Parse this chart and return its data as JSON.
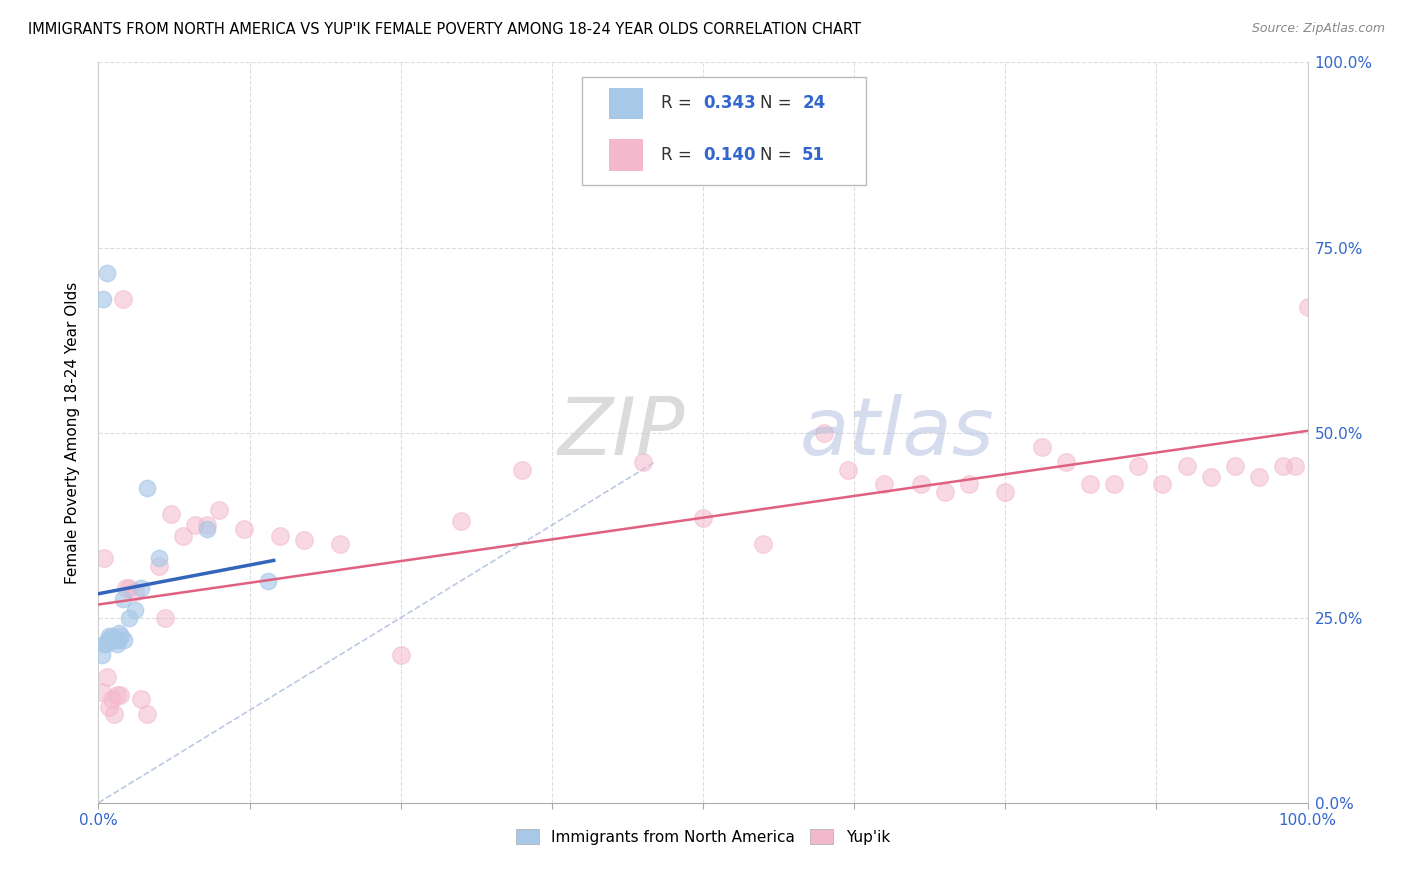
{
  "title": "IMMIGRANTS FROM NORTH AMERICA VS YUP'IK FEMALE POVERTY AMONG 18-24 YEAR OLDS CORRELATION CHART",
  "source": "Source: ZipAtlas.com",
  "ylabel": "Female Poverty Among 18-24 Year Olds",
  "background_color": "#ffffff",
  "watermark_zip": "ZIP",
  "watermark_atlas": "atlas",
  "blue_color": "#a8c8e8",
  "pink_color": "#f4b8cc",
  "blue_line_color": "#3366bb",
  "pink_line_color": "#e06080",
  "diagonal_color": "#aabbdd",
  "R_blue": 0.343,
  "N_blue": 24,
  "R_pink": 0.14,
  "N_pink": 51,
  "grid_color": "#dddddd",
  "axis_label_color": "#3366cc",
  "blue_scatter_x": [
    0.005,
    0.008,
    0.003,
    0.006,
    0.009,
    0.011,
    0.013,
    0.015,
    0.017,
    0.019,
    0.021,
    0.004,
    0.007,
    0.01,
    0.012,
    0.016,
    0.02,
    0.025,
    0.03,
    0.035,
    0.04,
    0.05,
    0.09,
    0.14
  ],
  "blue_scatter_y": [
    0.215,
    0.22,
    0.2,
    0.215,
    0.225,
    0.225,
    0.22,
    0.215,
    0.23,
    0.225,
    0.22,
    0.68,
    0.715,
    0.22,
    0.22,
    0.22,
    0.275,
    0.25,
    0.26,
    0.29,
    0.425,
    0.33,
    0.37,
    0.3
  ],
  "pink_scatter_x": [
    0.003,
    0.005,
    0.007,
    0.009,
    0.011,
    0.013,
    0.015,
    0.018,
    0.02,
    0.023,
    0.025,
    0.03,
    0.035,
    0.04,
    0.05,
    0.055,
    0.06,
    0.07,
    0.08,
    0.09,
    0.1,
    0.12,
    0.15,
    0.17,
    0.2,
    0.25,
    0.3,
    0.35,
    0.45,
    0.5,
    0.55,
    0.6,
    0.62,
    0.65,
    0.68,
    0.7,
    0.72,
    0.75,
    0.78,
    0.8,
    0.82,
    0.84,
    0.86,
    0.88,
    0.9,
    0.92,
    0.94,
    0.96,
    0.98,
    0.99,
    1.0
  ],
  "pink_scatter_y": [
    0.15,
    0.33,
    0.17,
    0.13,
    0.14,
    0.12,
    0.145,
    0.145,
    0.68,
    0.29,
    0.29,
    0.285,
    0.14,
    0.12,
    0.32,
    0.25,
    0.39,
    0.36,
    0.375,
    0.375,
    0.395,
    0.37,
    0.36,
    0.355,
    0.35,
    0.2,
    0.38,
    0.45,
    0.46,
    0.385,
    0.35,
    0.5,
    0.45,
    0.43,
    0.43,
    0.42,
    0.43,
    0.42,
    0.48,
    0.46,
    0.43,
    0.43,
    0.455,
    0.43,
    0.455,
    0.44,
    0.455,
    0.44,
    0.455,
    0.455,
    0.67
  ]
}
